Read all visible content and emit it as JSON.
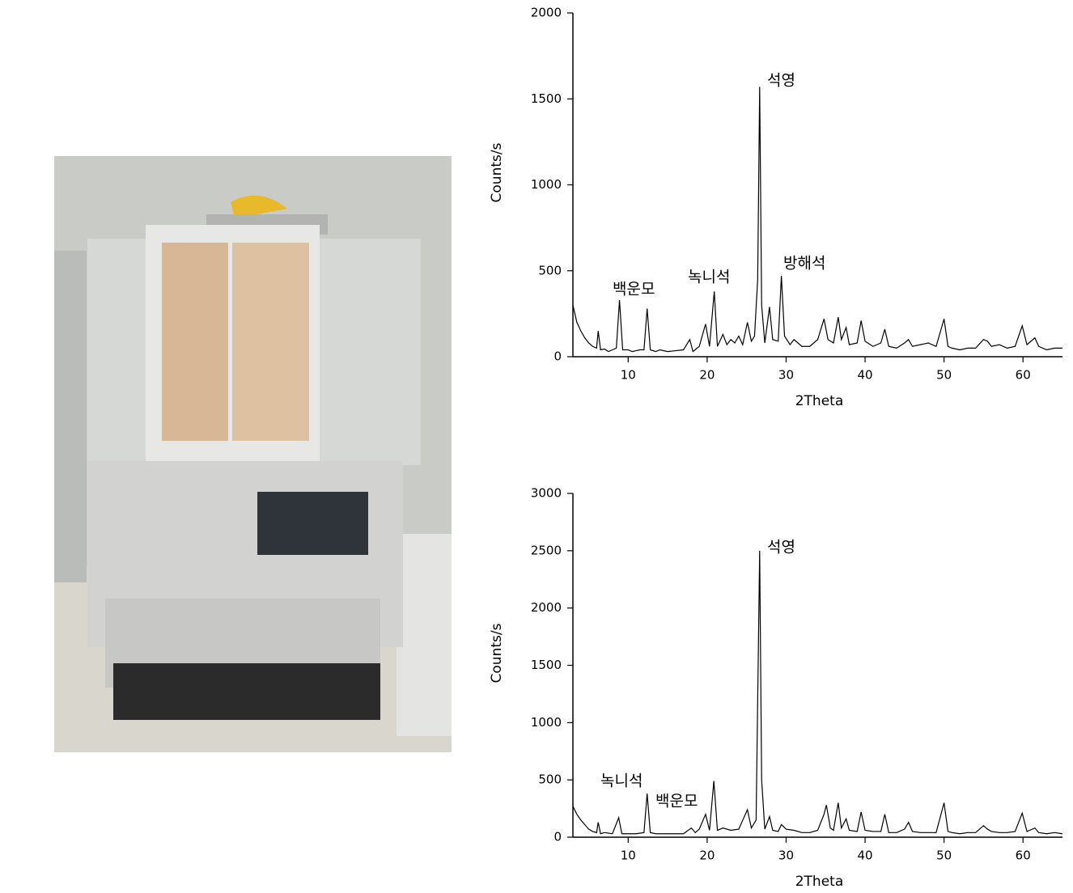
{
  "chart_data": [
    {
      "type": "line",
      "xlabel": "2Theta",
      "ylabel": "Counts/s",
      "color": "#000000",
      "xlim": [
        3,
        65
      ],
      "ylim": [
        0,
        2000
      ],
      "xticks": [
        10,
        20,
        30,
        40,
        50,
        60
      ],
      "yticks": [
        0,
        500,
        1000,
        1500,
        2000
      ],
      "annotations": [
        "석영",
        "백운모",
        "녹니석",
        "방해석"
      ],
      "x": [
        3,
        3.5,
        4,
        4.5,
        5,
        5.5,
        6,
        6.2,
        6.5,
        7,
        7.5,
        8,
        8.5,
        8.9,
        9.3,
        10,
        10.5,
        11,
        11.5,
        12,
        12.4,
        12.8,
        13.5,
        14,
        15,
        16,
        17,
        17.8,
        18.2,
        19,
        19.8,
        20.3,
        20.9,
        21.3,
        22,
        22.5,
        23,
        23.5,
        24,
        24.5,
        25.1,
        25.6,
        26,
        26.4,
        26.65,
        26.9,
        27.3,
        27.9,
        28.3,
        29,
        29.4,
        29.8,
        30.5,
        31,
        31.5,
        32,
        33,
        34,
        34.8,
        35.3,
        36,
        36.6,
        37,
        37.6,
        38,
        39,
        39.5,
        40,
        41,
        42,
        42.5,
        43,
        44,
        45,
        45.5,
        46,
        47,
        48,
        49,
        50,
        50.5,
        51,
        52,
        53,
        54,
        55,
        55.5,
        56,
        57,
        58,
        59,
        59.9,
        60.5,
        61.5,
        62,
        63,
        64,
        65
      ],
      "values": [
        300,
        200,
        150,
        110,
        80,
        60,
        50,
        150,
        40,
        45,
        30,
        40,
        50,
        330,
        40,
        40,
        30,
        35,
        40,
        40,
        280,
        40,
        30,
        40,
        30,
        35,
        40,
        100,
        30,
        60,
        190,
        60,
        380,
        60,
        130,
        70,
        100,
        80,
        120,
        70,
        200,
        90,
        120,
        450,
        1570,
        300,
        80,
        290,
        100,
        90,
        470,
        120,
        70,
        100,
        80,
        60,
        60,
        100,
        220,
        100,
        80,
        230,
        100,
        170,
        70,
        80,
        210,
        90,
        60,
        80,
        160,
        60,
        50,
        80,
        100,
        60,
        70,
        80,
        60,
        220,
        60,
        50,
        40,
        50,
        50,
        100,
        90,
        60,
        70,
        50,
        60,
        180,
        70,
        110,
        60,
        40,
        50,
        50
      ]
    },
    {
      "type": "line",
      "xlabel": "2Theta",
      "ylabel": "Counts/s",
      "color": "#000000",
      "xlim": [
        3,
        65
      ],
      "ylim": [
        0,
        3000
      ],
      "xticks": [
        10,
        20,
        30,
        40,
        50,
        60
      ],
      "yticks": [
        0,
        500,
        1000,
        1500,
        2000,
        2500,
        3000
      ],
      "annotations": [
        "석영",
        "녹니석",
        "백운모"
      ],
      "x": [
        3,
        3.5,
        4,
        4.5,
        5,
        5.5,
        6,
        6.2,
        6.5,
        7,
        8,
        8.8,
        9.2,
        10,
        11,
        12,
        12.4,
        12.8,
        13.5,
        14,
        15,
        16,
        17,
        18,
        18.5,
        19,
        19.8,
        20.3,
        20.85,
        21.3,
        22,
        23,
        24,
        25.1,
        25.6,
        26.2,
        26.65,
        26.9,
        27.3,
        27.9,
        28.3,
        29,
        29.4,
        30,
        31,
        32,
        33,
        34,
        34.8,
        35.1,
        35.6,
        36,
        36.6,
        37,
        37.6,
        38,
        39,
        39.5,
        40,
        41,
        42,
        42.5,
        43,
        44,
        45,
        45.5,
        46,
        47,
        48,
        49,
        50,
        50.5,
        51,
        52,
        53,
        54,
        55,
        55.5,
        56,
        57,
        58,
        59,
        59.9,
        60.5,
        61.5,
        62,
        63,
        64,
        65
      ],
      "values": [
        270,
        200,
        150,
        110,
        70,
        50,
        40,
        130,
        30,
        40,
        30,
        170,
        30,
        30,
        30,
        40,
        380,
        40,
        30,
        30,
        30,
        30,
        30,
        80,
        40,
        70,
        200,
        60,
        490,
        60,
        80,
        60,
        70,
        240,
        80,
        150,
        2500,
        500,
        70,
        180,
        60,
        50,
        110,
        70,
        60,
        40,
        40,
        60,
        200,
        280,
        80,
        60,
        300,
        80,
        160,
        60,
        50,
        220,
        60,
        50,
        50,
        200,
        40,
        40,
        70,
        130,
        50,
        40,
        40,
        40,
        300,
        50,
        40,
        30,
        40,
        40,
        100,
        70,
        50,
        40,
        40,
        50,
        210,
        50,
        80,
        40,
        30,
        40,
        30
      ]
    }
  ]
}
